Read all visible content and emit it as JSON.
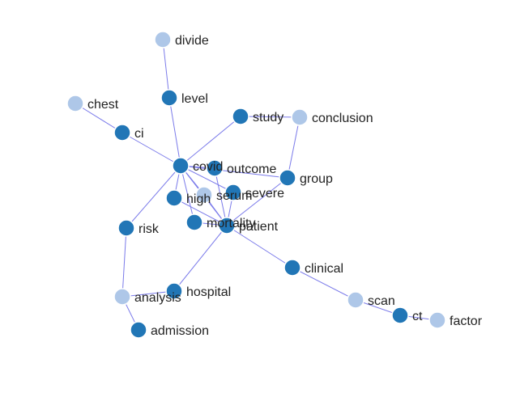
{
  "colors": {
    "dark": "#2176b6",
    "light": "#aec7e8",
    "edge": "#7b7bea"
  },
  "nodes": [
    {
      "id": "divide",
      "label": "divide",
      "group": "light"
    },
    {
      "id": "level",
      "label": "level",
      "group": "dark"
    },
    {
      "id": "chest",
      "label": "chest",
      "group": "light"
    },
    {
      "id": "ci",
      "label": "ci",
      "group": "dark"
    },
    {
      "id": "study",
      "label": "study",
      "group": "dark"
    },
    {
      "id": "conclusion",
      "label": "conclusion",
      "group": "light"
    },
    {
      "id": "covid",
      "label": "covid",
      "group": "dark"
    },
    {
      "id": "outcome",
      "label": "outcome",
      "group": "dark"
    },
    {
      "id": "group",
      "label": "group",
      "group": "dark"
    },
    {
      "id": "high",
      "label": "high",
      "group": "dark"
    },
    {
      "id": "serum",
      "label": "serum",
      "group": "light"
    },
    {
      "id": "severe",
      "label": "severe",
      "group": "dark"
    },
    {
      "id": "risk",
      "label": "risk",
      "group": "dark"
    },
    {
      "id": "mortality",
      "label": "mortality",
      "group": "dark"
    },
    {
      "id": "patient",
      "label": "patient",
      "group": "dark"
    },
    {
      "id": "clinical",
      "label": "clinical",
      "group": "dark"
    },
    {
      "id": "hospital",
      "label": "hospital",
      "group": "dark"
    },
    {
      "id": "analysis",
      "label": "analysis",
      "group": "light"
    },
    {
      "id": "scan",
      "label": "scan",
      "group": "light"
    },
    {
      "id": "ct",
      "label": "ct",
      "group": "dark"
    },
    {
      "id": "factor",
      "label": "factor",
      "group": "light"
    },
    {
      "id": "admission",
      "label": "admission",
      "group": "dark"
    }
  ],
  "edges": [
    [
      "divide",
      "level"
    ],
    [
      "level",
      "covid"
    ],
    [
      "chest",
      "ci"
    ],
    [
      "ci",
      "covid"
    ],
    [
      "covid",
      "study"
    ],
    [
      "study",
      "conclusion"
    ],
    [
      "conclusion",
      "group"
    ],
    [
      "covid",
      "outcome"
    ],
    [
      "covid",
      "high"
    ],
    [
      "covid",
      "serum"
    ],
    [
      "covid",
      "severe"
    ],
    [
      "covid",
      "mortality"
    ],
    [
      "covid",
      "patient"
    ],
    [
      "covid",
      "risk"
    ],
    [
      "covid",
      "group"
    ],
    [
      "outcome",
      "patient"
    ],
    [
      "high",
      "patient"
    ],
    [
      "serum",
      "patient"
    ],
    [
      "severe",
      "patient"
    ],
    [
      "mortality",
      "patient"
    ],
    [
      "group",
      "patient"
    ],
    [
      "risk",
      "analysis"
    ],
    [
      "analysis",
      "hospital"
    ],
    [
      "analysis",
      "admission"
    ],
    [
      "patient",
      "hospital"
    ],
    [
      "patient",
      "clinical"
    ],
    [
      "clinical",
      "scan"
    ],
    [
      "scan",
      "ct"
    ],
    [
      "ct",
      "factor"
    ]
  ]
}
